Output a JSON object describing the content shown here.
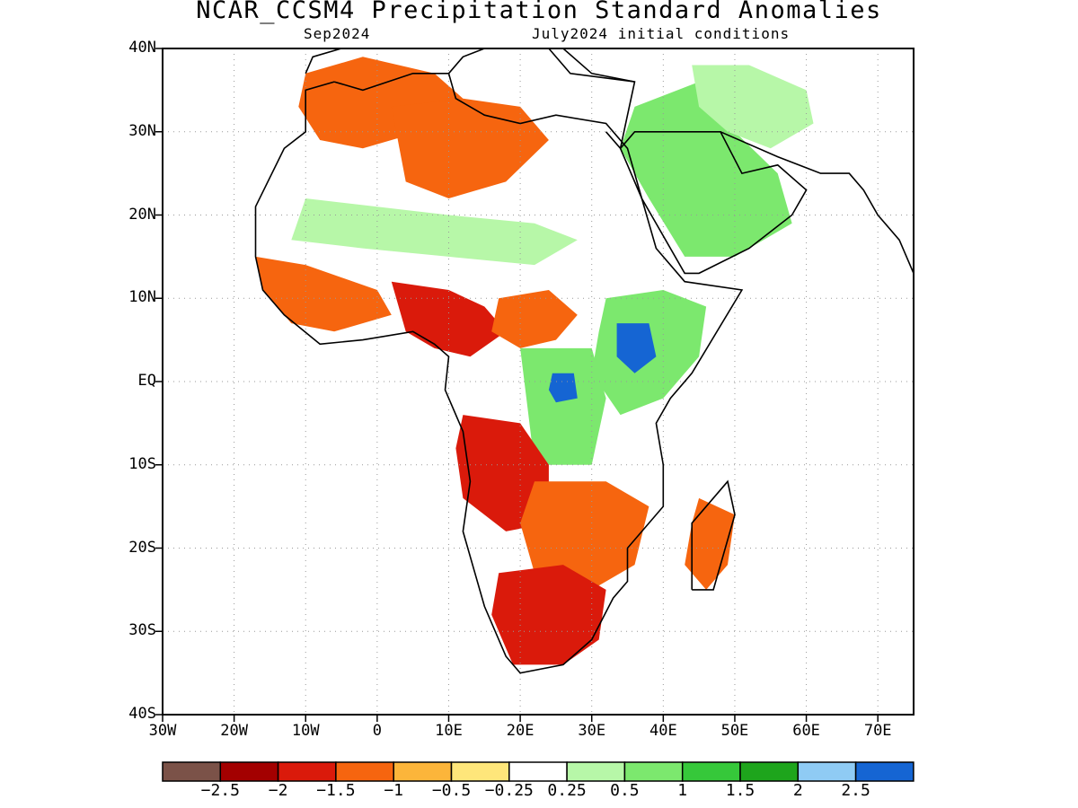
{
  "header": {
    "title": "NCAR_CCSM4 Precipitation Standard Anomalies",
    "target_month": "Sep2024",
    "initial_conditions": "July2024 initial conditions"
  },
  "axes": {
    "y_labels": [
      "40N",
      "30N",
      "20N",
      "10N",
      "EQ",
      "10S",
      "20S",
      "30S",
      "40S"
    ],
    "x_labels": [
      "30W",
      "20W",
      "10W",
      "0",
      "10E",
      "20E",
      "30E",
      "40E",
      "50E",
      "60E",
      "70E"
    ],
    "lon_range": [
      -30,
      75
    ],
    "lat_range": [
      -40,
      40
    ],
    "grid": "dotted"
  },
  "colorbar": {
    "colors": [
      "#7b5248",
      "#a30000",
      "#da1a0b",
      "#f6650f",
      "#fcb53a",
      "#fee67a",
      "#ffffff",
      "#b7f7a8",
      "#7ce86e",
      "#36c83a",
      "#1ea51c",
      "#8fcbf4",
      "#1565d3"
    ],
    "labels": [
      "−2.5",
      "−2",
      "−1.5",
      "−1",
      "−0.5",
      "−0.25",
      "0.25",
      "0.5",
      "1",
      "1.5",
      "2",
      "2.5"
    ]
  },
  "anomaly_regions": [
    {
      "region": "Morocco/Algeria north",
      "level": "-1"
    },
    {
      "region": "Algeria/Libya",
      "level": "-1"
    },
    {
      "region": "Sahel interior",
      "level": "0.5"
    },
    {
      "region": "West Africa coast",
      "level": "-1"
    },
    {
      "region": "Nigeria/Cameroon",
      "level": "-1.5"
    },
    {
      "region": "Central African Republic",
      "level": "-1"
    },
    {
      "region": "Congo basin",
      "level": "1"
    },
    {
      "region": "Eastern Congo core",
      "level": "2.5"
    },
    {
      "region": "Ethiopia",
      "level": "1"
    },
    {
      "region": "Ethiopia core",
      "level": "2.5"
    },
    {
      "region": "Arabian Peninsula",
      "level": "1"
    },
    {
      "region": "Iran",
      "level": "0.5"
    },
    {
      "region": "Angola",
      "level": "-1.5"
    },
    {
      "region": "Zambia/Zimbabwe",
      "level": "-1"
    },
    {
      "region": "South Africa",
      "level": "-1.5"
    },
    {
      "region": "Madagascar",
      "level": "-1"
    }
  ]
}
